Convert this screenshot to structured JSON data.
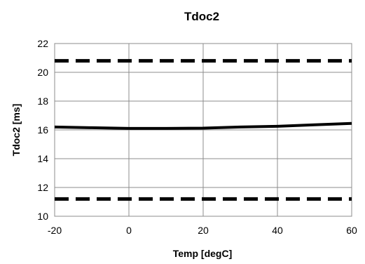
{
  "chart_data": {
    "type": "line",
    "title": "Tdoc2",
    "xlabel": "Temp [degC]",
    "ylabel": "Tdoc2 [ms]",
    "xlim": [
      -20,
      60
    ],
    "ylim": [
      10,
      22
    ],
    "xticks": [
      -20,
      0,
      20,
      40,
      60
    ],
    "yticks": [
      10,
      12,
      14,
      16,
      18,
      20,
      22
    ],
    "grid": true,
    "legend": "none",
    "series": [
      {
        "style": "solid",
        "color": "#000000",
        "x": [
          -20,
          -10,
          0,
          10,
          20,
          30,
          40,
          50,
          60
        ],
        "y": [
          16.2,
          16.15,
          16.1,
          16.1,
          16.12,
          16.2,
          16.25,
          16.35,
          16.45
        ]
      },
      {
        "style": "dashed",
        "color": "#000000",
        "x": [
          -20,
          60
        ],
        "y": [
          20.8,
          20.8
        ]
      },
      {
        "style": "dashed",
        "color": "#000000",
        "x": [
          -20,
          60
        ],
        "y": [
          11.2,
          11.2
        ]
      }
    ]
  }
}
